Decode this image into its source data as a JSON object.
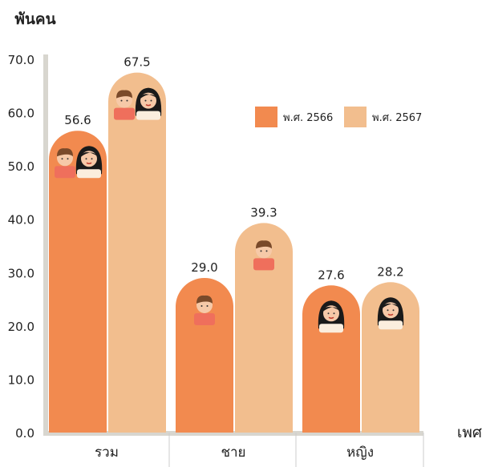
{
  "chart_data": {
    "type": "bar",
    "y_unit_label": "พันคน",
    "xlabel": "เพศ",
    "categories": [
      "รวม",
      "ชาย",
      "หญิง"
    ],
    "series": [
      {
        "name": "พ.ศ. 2566",
        "values": [
          56.6,
          29.0,
          27.6
        ],
        "color": "#F28A4F"
      },
      {
        "name": "พ.ศ. 2567",
        "values": [
          67.5,
          39.3,
          28.2
        ],
        "color": "#F2BE8E"
      }
    ],
    "data_labels": [
      [
        "56.6",
        "29.0",
        "27.6"
      ],
      [
        "67.5",
        "39.3",
        "28.2"
      ]
    ],
    "ylim": [
      0,
      70
    ],
    "yticks": [
      0,
      10,
      20,
      30,
      40,
      50,
      60,
      70
    ],
    "ytick_labels": [
      "0.0",
      "10.0",
      "20.0",
      "30.0",
      "40.0",
      "50.0",
      "60.0",
      "70.0"
    ],
    "legend_position": "top-right",
    "grid": false,
    "icons": [
      [
        "man-and-woman-icon",
        "man-icon",
        "woman-icon"
      ],
      [
        "man-and-woman-icon",
        "man-icon",
        "woman-icon"
      ]
    ]
  }
}
